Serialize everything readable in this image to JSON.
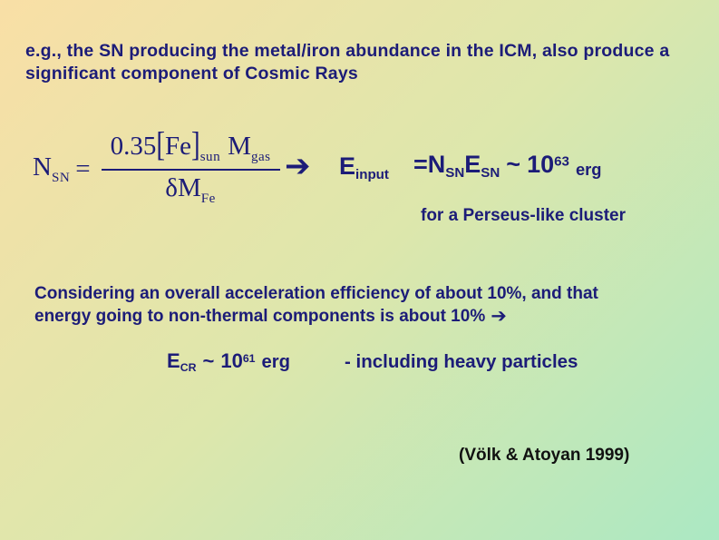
{
  "slide": {
    "colors": {
      "bg-from": "#f9dfa6",
      "bg-mid": "#dde7ac",
      "bg-to": "#abe8c3",
      "ink": "#1c1c78",
      "citation-ink": "#111111"
    },
    "title": "e.g., the SN producing the metal/iron abundance in the ICM, also produce a significant component of Cosmic Rays",
    "formula": {
      "lhs_base": "N",
      "lhs_sub": "SN",
      "equals_sign": "=",
      "numerator": {
        "coeff": "0.35",
        "bracket_open": "[",
        "element": "Fe",
        "bracket_close": "]",
        "bracket_sub": "sun",
        "mass_base": "M",
        "mass_sub": "gas"
      },
      "denominator": {
        "base": "δM",
        "sub": "Fe"
      }
    },
    "arrow_glyph": "➔",
    "energy_input": {
      "e_base": "E",
      "e_sub": "input",
      "equals_sign": "=",
      "n_base": "N",
      "n_sub": "SN",
      "e2_base": "E",
      "e2_sub": "SN",
      "approx": "~",
      "power_base": "10",
      "power_exp": "63",
      "unit": "erg"
    },
    "cluster_note": "for a Perseus-like cluster",
    "paragraph": {
      "line1": "Considering an overall acceleration efficiency of about 10%, and that",
      "line2": "energy going to non-thermal components is about 10%",
      "arrow": "➔"
    },
    "energy_cr": {
      "e_base": "E",
      "e_sub": "CR",
      "approx": "~",
      "power_base": "10",
      "power_exp": "61",
      "unit": "erg",
      "note": "- including heavy particles"
    },
    "citation": "(Völk & Atoyan 1999)"
  }
}
